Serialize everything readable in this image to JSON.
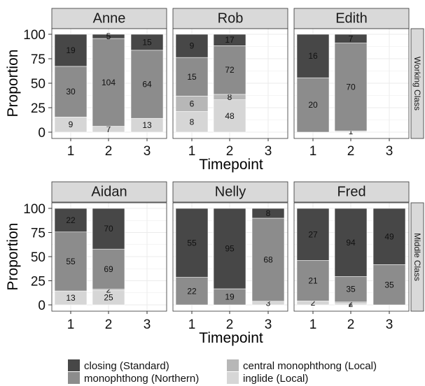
{
  "chart_data": {
    "type": "bar",
    "stacked": true,
    "xlabel": "Timepoint",
    "ylabel": "Proportion",
    "ylim": [
      0,
      100
    ],
    "yticks": [
      0,
      25,
      50,
      75,
      100
    ],
    "xticks": [
      "1",
      "2",
      "3"
    ],
    "legend_placement": "bottom",
    "legend": [
      {
        "key": "closing",
        "label": "closing (Standard)"
      },
      {
        "key": "central",
        "label": "central monophthong (Local)"
      },
      {
        "key": "mono",
        "label": "monophthong (Northern)"
      },
      {
        "key": "inglide",
        "label": "inglide (Local)"
      }
    ],
    "colors": {
      "inglide": "#d6d6d6",
      "central": "#b7b7b7",
      "mono": "#8c8c8c",
      "closing": "#474747",
      "strip": "#d9d9d9",
      "row_strip": "#d9d9d9",
      "grid": "#ebebeb",
      "panel_border": "#333333"
    },
    "stack_order": [
      "inglide",
      "central",
      "mono",
      "closing"
    ],
    "rows": [
      {
        "label": "Working Class",
        "panels": [
          {
            "speaker": "Anne",
            "bars": [
              {
                "x": "1",
                "counts": {
                  "inglide": 9,
                  "central": 0,
                  "mono": 30,
                  "closing": 19
                },
                "labels": {
                  "inglide": "9",
                  "mono": "30",
                  "closing": "19"
                }
              },
              {
                "x": "2",
                "counts": {
                  "inglide": 7,
                  "central": 0,
                  "mono": 104,
                  "closing": 5
                },
                "labels": {
                  "inglide": "7",
                  "mono": "104",
                  "closing": "5"
                }
              },
              {
                "x": "3",
                "counts": {
                  "inglide": 13,
                  "central": 0,
                  "mono": 64,
                  "closing": 15
                },
                "labels": {
                  "inglide": "13",
                  "mono": "64",
                  "closing": "15"
                }
              }
            ]
          },
          {
            "speaker": "Rob",
            "bars": [
              {
                "x": "1",
                "counts": {
                  "inglide": 8,
                  "central": 6,
                  "mono": 15,
                  "closing": 9
                },
                "labels": {
                  "inglide": "8",
                  "central": "6",
                  "mono": "15",
                  "closing": "9"
                }
              },
              {
                "x": "2",
                "counts": {
                  "inglide": 48,
                  "central": 8,
                  "mono": 72,
                  "closing": 17
                },
                "labels": {
                  "inglide": "48",
                  "central": "8",
                  "mono": "72",
                  "closing": "17"
                }
              }
            ]
          },
          {
            "speaker": "Edith",
            "bars": [
              {
                "x": "1",
                "counts": {
                  "inglide": 0,
                  "central": 0,
                  "mono": 20,
                  "closing": 16
                },
                "labels": {
                  "mono": "20",
                  "closing": "16"
                }
              },
              {
                "x": "2",
                "counts": {
                  "inglide": 1,
                  "central": 0,
                  "mono": 70,
                  "closing": 7
                },
                "labels": {
                  "inglide": "1",
                  "mono": "70",
                  "closing": "7"
                }
              }
            ]
          }
        ]
      },
      {
        "label": "Middle Class",
        "panels": [
          {
            "speaker": "Aidan",
            "bars": [
              {
                "x": "1",
                "counts": {
                  "inglide": 13,
                  "central": 0,
                  "mono": 55,
                  "closing": 22
                },
                "labels": {
                  "inglide": "13",
                  "mono": "55",
                  "closing": "22"
                }
              },
              {
                "x": "2",
                "counts": {
                  "inglide": 25,
                  "central": 2,
                  "mono": 69,
                  "closing": 70
                },
                "labels": {
                  "inglide": "25",
                  "central": "2",
                  "mono": "69",
                  "closing": "70"
                }
              }
            ]
          },
          {
            "speaker": "Nelly",
            "bars": [
              {
                "x": "1",
                "counts": {
                  "inglide": 0,
                  "central": 0,
                  "mono": 22,
                  "closing": 55
                },
                "labels": {
                  "mono": "22",
                  "closing": "55"
                }
              },
              {
                "x": "2",
                "counts": {
                  "inglide": 0,
                  "central": 0,
                  "mono": 19,
                  "closing": 95
                },
                "labels": {
                  "mono": "19",
                  "closing": "95"
                }
              },
              {
                "x": "3",
                "counts": {
                  "inglide": 3,
                  "central": 0,
                  "mono": 68,
                  "closing": 8
                },
                "labels": {
                  "inglide": "3",
                  "mono": "68",
                  "closing": "8"
                }
              }
            ]
          },
          {
            "speaker": "Fred",
            "bars": [
              {
                "x": "1",
                "counts": {
                  "inglide": 2,
                  "central": 0,
                  "mono": 21,
                  "closing": 27
                },
                "labels": {
                  "inglide": "2",
                  "mono": "21",
                  "closing": "27"
                }
              },
              {
                "x": "2",
                "counts": {
                  "inglide": 2,
                  "central": 2,
                  "mono": 35,
                  "closing": 94
                },
                "labels": {
                  "inglide": "2",
                  "central": "2",
                  "mono": "35",
                  "closing": "94"
                }
              },
              {
                "x": "3",
                "counts": {
                  "inglide": 0,
                  "central": 0,
                  "mono": 35,
                  "closing": 49
                },
                "labels": {
                  "mono": "35",
                  "closing": "49"
                }
              }
            ]
          }
        ]
      }
    ]
  }
}
